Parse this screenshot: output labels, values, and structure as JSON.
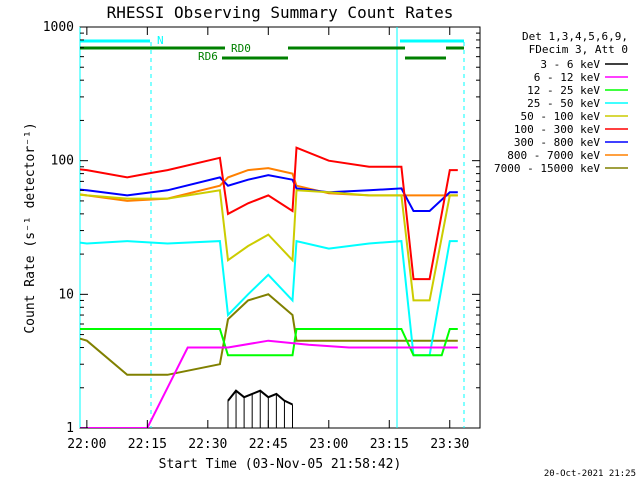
{
  "chart_data": {
    "type": "line",
    "title": "RHESSI Observing Summary Count Rates",
    "xlabel": "Start Time (03-Nov-05 21:58:42)",
    "ylabel": "Count Rate (s⁻¹ detector⁻¹)",
    "y_scale": "log",
    "ylim": [
      1,
      1000
    ],
    "xlim_minutes": [
      -1.7,
      36.6
    ],
    "x_ticks": [
      {
        "value": 0,
        "label": "22:00"
      },
      {
        "value": 15,
        "label": "22:15"
      },
      {
        "value": 30,
        "label": "22:30"
      },
      {
        "value": 45,
        "label": "22:45"
      },
      {
        "value": 60,
        "label": "23:00"
      },
      {
        "value": 75,
        "label": "23:15"
      },
      {
        "value": 90,
        "label": "23:30"
      }
    ],
    "y_ticks": [
      {
        "value": 1,
        "label": "1"
      },
      {
        "value": 10,
        "label": "10"
      },
      {
        "value": 100,
        "label": "100"
      },
      {
        "value": 1000,
        "label": "1000"
      }
    ],
    "legend_header": [
      "Det 1,3,4,5,6,9,",
      "FDecim 3, Att 0"
    ],
    "legend_position": "right",
    "series": [
      {
        "name": "3 - 6 keV",
        "color": "#000000",
        "x": [
          35,
          37,
          39,
          41,
          43,
          45,
          47,
          49,
          51
        ],
        "values": [
          1.6,
          1.9,
          1.7,
          1.8,
          1.9,
          1.7,
          1.8,
          1.6,
          1.5
        ]
      },
      {
        "name": "6 - 12 keV",
        "color": "#ff00ff",
        "x": [
          -5,
          5,
          15,
          25,
          35,
          45,
          55,
          65,
          75,
          85,
          90,
          92
        ],
        "values": [
          1,
          1,
          1,
          4,
          4,
          4.5,
          4.2,
          4,
          4,
          4,
          4,
          4
        ]
      },
      {
        "name": "12 - 25 keV",
        "color": "#00ff00",
        "x": [
          -5,
          5,
          15,
          25,
          33,
          35,
          38,
          45,
          51,
          52,
          60,
          70,
          78,
          81,
          83,
          88,
          90,
          92
        ],
        "values": [
          5.5,
          5.5,
          5.5,
          5.5,
          5.5,
          3.5,
          3.5,
          3.5,
          3.5,
          5.5,
          5.5,
          5.5,
          5.5,
          3.5,
          3.5,
          3.5,
          5.5,
          5.5
        ]
      },
      {
        "name": "25 - 50 keV",
        "color": "#00ffff",
        "x": [
          -5,
          0,
          10,
          20,
          33,
          35,
          40,
          45,
          51,
          52,
          60,
          70,
          78,
          81,
          85,
          90,
          92
        ],
        "values": [
          25,
          24,
          25,
          24,
          25,
          7,
          10,
          14,
          9,
          25,
          22,
          24,
          25,
          3.5,
          3.5,
          25,
          25
        ]
      },
      {
        "name": "50 - 100 keV",
        "color": "#cccc00",
        "x": [
          -5,
          0,
          10,
          20,
          33,
          35,
          40,
          45,
          51,
          52,
          60,
          70,
          78,
          81,
          85,
          90,
          92
        ],
        "values": [
          57,
          55,
          52,
          52,
          60,
          18,
          23,
          28,
          18,
          60,
          58,
          55,
          55,
          9,
          9,
          55,
          55
        ]
      },
      {
        "name": "100 - 300 keV",
        "color": "#ff0000",
        "x": [
          -5,
          0,
          10,
          15,
          20,
          33,
          35,
          40,
          45,
          51,
          52,
          60,
          70,
          78,
          81,
          85,
          90,
          92
        ],
        "values": [
          88,
          85,
          75,
          80,
          85,
          105,
          40,
          48,
          55,
          42,
          125,
          100,
          90,
          90,
          13,
          13,
          85,
          85
        ]
      },
      {
        "name": "300 - 800 keV",
        "color": "#0000ff",
        "x": [
          -5,
          0,
          10,
          20,
          33,
          35,
          40,
          45,
          51,
          52,
          60,
          70,
          78,
          81,
          85,
          90,
          92
        ],
        "values": [
          62,
          60,
          55,
          60,
          75,
          65,
          72,
          78,
          72,
          62,
          58,
          60,
          62,
          42,
          42,
          58,
          58
        ]
      },
      {
        "name": "800 - 7000 keV",
        "color": "#ff8000",
        "x": [
          -5,
          0,
          10,
          20,
          33,
          35,
          40,
          45,
          51,
          52,
          60,
          70,
          78,
          81,
          85,
          90,
          92
        ],
        "values": [
          58,
          55,
          50,
          52,
          65,
          75,
          85,
          88,
          80,
          65,
          57,
          55,
          55,
          55,
          55,
          55,
          55
        ]
      },
      {
        "name": "7000 - 15000 keV",
        "color": "#808000",
        "x": [
          -5,
          0,
          10,
          20,
          33,
          35,
          40,
          45,
          51,
          52,
          60,
          70,
          78,
          81,
          85,
          90,
          92
        ],
        "values": [
          5,
          4.5,
          2.5,
          2.5,
          3,
          6.5,
          9,
          10,
          7,
          4.5,
          4.5,
          4.5,
          4.5,
          4.5,
          4.5,
          4.5,
          4.5
        ]
      }
    ],
    "annotations": {
      "state_bars": [
        {
          "label": "N",
          "color": "#00ffff"
        },
        {
          "label": "RD0",
          "color": "#008000"
        },
        {
          "label": "RD6",
          "color": "#008000"
        }
      ]
    },
    "footer_date": "20-Oct-2021 21:25"
  }
}
